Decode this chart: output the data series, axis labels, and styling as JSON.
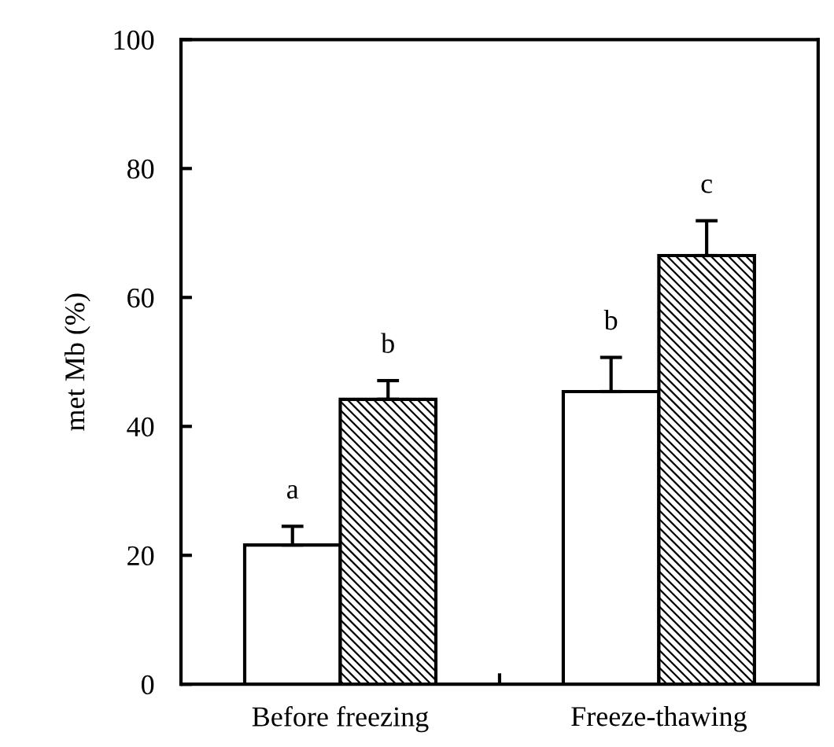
{
  "chart_data": {
    "type": "bar",
    "ylabel": "met Mb (%)",
    "categories": [
      "Before freezing",
      "Freeze-thawing"
    ],
    "series": [
      {
        "color": "#ffffff",
        "values": [
          21.6,
          45.4
        ],
        "errors": [
          2.9,
          5.3
        ],
        "value_labels": [
          "a",
          "b"
        ]
      },
      {
        "color": "#000000",
        "values": [
          44.2,
          66.5
        ],
        "errors": [
          2.9,
          5.4
        ],
        "value_labels": [
          "b",
          "c"
        ]
      }
    ],
    "ylim": [
      0,
      100
    ],
    "yticks": [
      0,
      20,
      40,
      60,
      80,
      100
    ],
    "grid": false,
    "legend": false
  }
}
